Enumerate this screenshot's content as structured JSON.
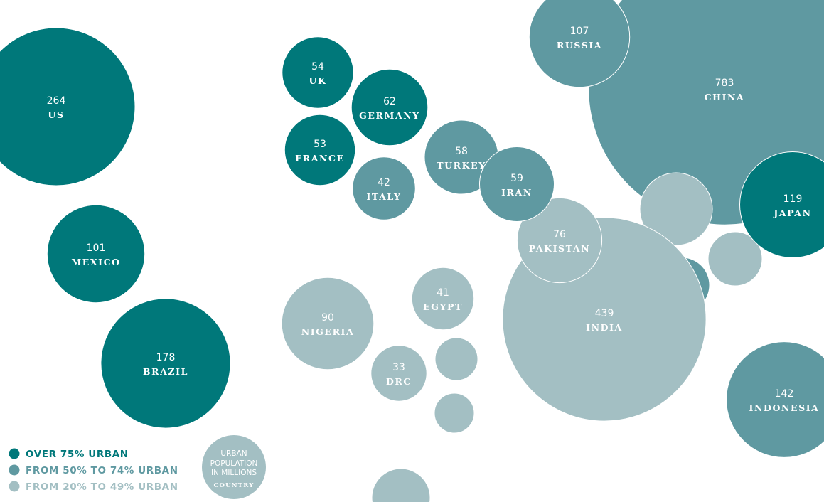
{
  "colors": {
    "over75": "#00787a",
    "from50to74": "#5f99a1",
    "from20to49": "#a3bfc3"
  },
  "legend": {
    "items": [
      {
        "label": "OVER 75% URBAN",
        "category": "over75"
      },
      {
        "label": "FROM 50% TO 74% URBAN",
        "category": "from50to74"
      },
      {
        "label": "FROM 20% TO 49% URBAN",
        "category": "from20to49"
      }
    ],
    "key": {
      "line1": "URBAN",
      "line2": "POPULATION",
      "line3": "IN MILLIONS",
      "country": "COUNTRY"
    }
  },
  "chart_data": {
    "type": "bubble",
    "value_unit": "urban population in millions",
    "bubbles": [
      {
        "country": "US",
        "value": 264,
        "category": "over75"
      },
      {
        "country": "UK",
        "value": 54,
        "category": "over75"
      },
      {
        "country": "GERMANY",
        "value": 62,
        "category": "over75"
      },
      {
        "country": "FRANCE",
        "value": 53,
        "category": "over75"
      },
      {
        "country": "ITALY",
        "value": 42,
        "category": "from50to74"
      },
      {
        "country": "TURKEY",
        "value": 58,
        "category": "from50to74"
      },
      {
        "country": "IRAN",
        "value": 59,
        "category": "from50to74"
      },
      {
        "country": "RUSSIA",
        "value": 107,
        "category": "from50to74"
      },
      {
        "country": "CHINA",
        "value": 783,
        "category": "from50to74"
      },
      {
        "country": "JAPAN",
        "value": 119,
        "category": "over75"
      },
      {
        "country": "MEXICO",
        "value": 101,
        "category": "over75"
      },
      {
        "country": "BRAZIL",
        "value": 178,
        "category": "over75"
      },
      {
        "country": "PAKISTAN",
        "value": 76,
        "category": "from20to49"
      },
      {
        "country": "INDIA",
        "value": 439,
        "category": "from20to49"
      },
      {
        "country": "EGYPT",
        "value": 41,
        "category": "from20to49"
      },
      {
        "country": "NIGERIA",
        "value": 90,
        "category": "from20to49"
      },
      {
        "country": "DRC",
        "value": 33,
        "category": "from20to49"
      },
      {
        "country": "INDONESIA",
        "value": 142,
        "category": "from50to74"
      }
    ],
    "unlabeled_bubbles": [
      {
        "category": "from20to49"
      },
      {
        "category": "from20to49"
      },
      {
        "category": "from50to74"
      },
      {
        "category": "from20to49"
      },
      {
        "category": "from20to49"
      },
      {
        "category": "from20to49"
      }
    ]
  }
}
